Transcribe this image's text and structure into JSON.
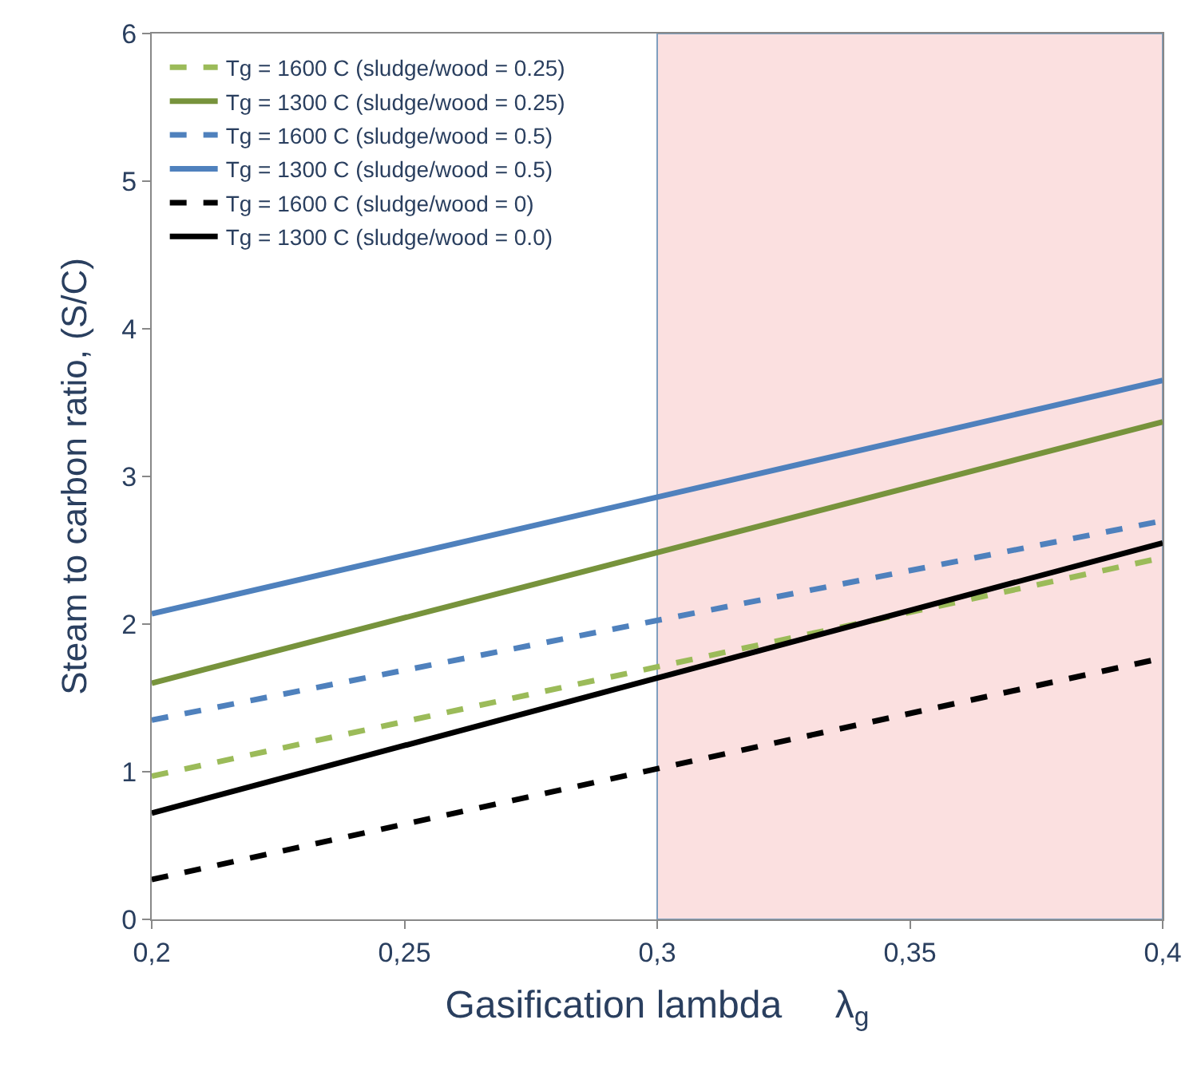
{
  "chart_data": {
    "type": "line",
    "xlabel": "Gasification lambda     λ$_{g}$",
    "ylabel": "Steam to carbon ratio, (S/C)",
    "x": [
      0.2,
      0.4
    ],
    "series": [
      {
        "name": "Tg = 1600 C (sludge/wood = 0.25)",
        "color": "#9bbb59",
        "line_style": "dashed",
        "values": [
          0.97,
          2.45
        ]
      },
      {
        "name": "Tg = 1300 C (sludge/wood = 0.25)",
        "color": "#77933c",
        "line_style": "solid",
        "values": [
          1.6,
          3.37
        ]
      },
      {
        "name": "Tg = 1600 C (sludge/wood = 0.5)",
        "color": "#4f81bd",
        "line_style": "dashed",
        "values": [
          1.35,
          2.7
        ]
      },
      {
        "name": "Tg = 1300 C (sludge/wood = 0.5)",
        "color": "#4f81bd",
        "line_style": "solid",
        "values": [
          2.07,
          3.65
        ]
      },
      {
        "name": "Tg = 1600 C (sludge/wood = 0)",
        "color": "#000000",
        "line_style": "dashed",
        "values": [
          0.27,
          1.77
        ]
      },
      {
        "name": "Tg = 1300 C (sludge/wood = 0.0)",
        "color": "#000000",
        "line_style": "solid",
        "values": [
          0.72,
          2.55
        ]
      }
    ],
    "xlim": [
      0.2,
      0.4
    ],
    "xticks": [
      {
        "value": 0.2,
        "label": "0,2"
      },
      {
        "value": 0.25,
        "label": "0,25"
      },
      {
        "value": 0.3,
        "label": "0,3"
      },
      {
        "value": 0.35,
        "label": "0,35"
      },
      {
        "value": 0.4,
        "label": "0,4"
      }
    ],
    "ylim": [
      0,
      6
    ],
    "yticks": [
      0,
      1,
      2,
      3,
      4,
      5,
      6
    ],
    "bands": [
      {
        "axis": "x",
        "from": 0.3,
        "to": 0.4,
        "color": "#fbe0e0"
      }
    ],
    "legend": "top left",
    "grid": false,
    "marker": "none"
  }
}
